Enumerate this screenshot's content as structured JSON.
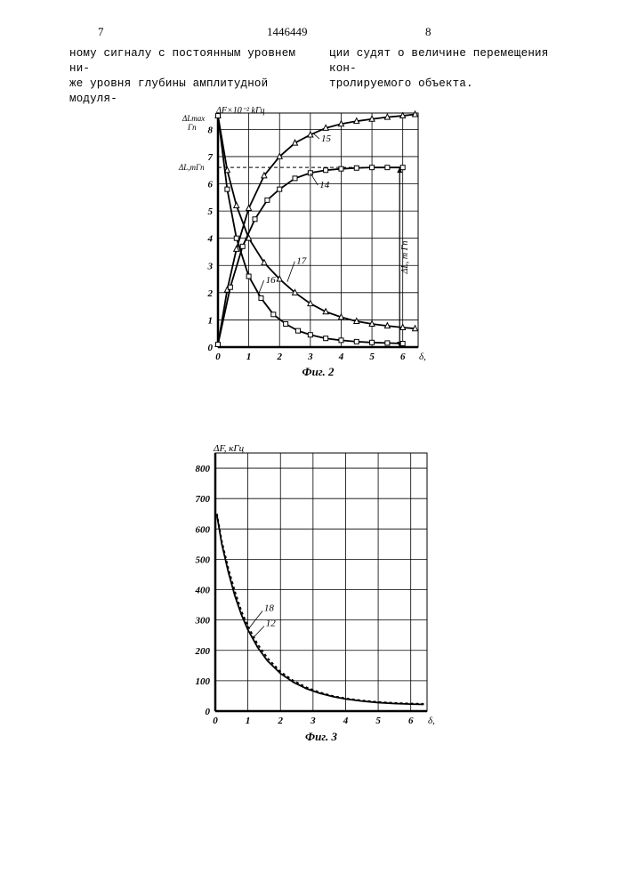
{
  "doc_number": "1446449",
  "page_left": "7",
  "page_right": "8",
  "text_left": "ному сигналу с постоянным уровнем ни-\nже уровня глубины амплитудной модуля-",
  "text_right": "ции судят о величине перемещения кон-\nтролируемого объекта.",
  "chart2": {
    "caption": "Фиг. 2",
    "y_label": "ΔF×10⁻² kГц",
    "y_label2_top": "ΔLmax\nГп",
    "y_label2_mid": "ΔL,mГп",
    "x_label": "δ, мм",
    "xlim": [
      0,
      6.5
    ],
    "x_ticks": [
      0,
      1,
      2,
      3,
      4,
      5,
      6
    ],
    "ylim_left": [
      0,
      8.6
    ],
    "y_ticks_left": [
      0,
      1,
      2,
      3,
      4,
      5,
      6,
      7,
      8
    ],
    "dashed_y": 6.6,
    "dashed_x": 5.9,
    "right_arrow_label": "ΔL, m Гп",
    "curve_15_up": {
      "label": "15",
      "marker": "triangle",
      "points": [
        [
          0,
          0.1
        ],
        [
          0.3,
          2.1
        ],
        [
          0.6,
          3.6
        ],
        [
          1,
          5.1
        ],
        [
          1.5,
          6.3
        ],
        [
          2,
          7.0
        ],
        [
          2.5,
          7.5
        ],
        [
          3,
          7.8
        ],
        [
          3.5,
          8.05
        ],
        [
          4,
          8.2
        ],
        [
          4.5,
          8.3
        ],
        [
          5,
          8.38
        ],
        [
          5.5,
          8.45
        ],
        [
          6,
          8.5
        ],
        [
          6.4,
          8.55
        ]
      ]
    },
    "curve_14": {
      "label": "14",
      "marker": "square",
      "points": [
        [
          0,
          0.1
        ],
        [
          0.4,
          2.2
        ],
        [
          0.8,
          3.7
        ],
        [
          1.2,
          4.7
        ],
        [
          1.6,
          5.4
        ],
        [
          2,
          5.8
        ],
        [
          2.5,
          6.2
        ],
        [
          3,
          6.4
        ],
        [
          3.5,
          6.5
        ],
        [
          4,
          6.55
        ],
        [
          4.5,
          6.58
        ],
        [
          5,
          6.6
        ],
        [
          5.5,
          6.6
        ],
        [
          6,
          6.6
        ]
      ]
    },
    "curve_17": {
      "label": "17",
      "marker": "triangle",
      "points": [
        [
          0,
          8.5
        ],
        [
          0.3,
          6.5
        ],
        [
          0.6,
          5.2
        ],
        [
          1,
          4.0
        ],
        [
          1.5,
          3.1
        ],
        [
          2,
          2.5
        ],
        [
          2.5,
          2.0
        ],
        [
          3,
          1.6
        ],
        [
          3.5,
          1.3
        ],
        [
          4,
          1.1
        ],
        [
          4.5,
          0.95
        ],
        [
          5,
          0.85
        ],
        [
          5.5,
          0.78
        ],
        [
          6,
          0.72
        ],
        [
          6.4,
          0.68
        ]
      ]
    },
    "curve_16": {
      "label": "16",
      "marker": "square",
      "points": [
        [
          0,
          8.5
        ],
        [
          0.3,
          5.8
        ],
        [
          0.6,
          4.0
        ],
        [
          1,
          2.6
        ],
        [
          1.4,
          1.8
        ],
        [
          1.8,
          1.2
        ],
        [
          2.2,
          0.85
        ],
        [
          2.6,
          0.6
        ],
        [
          3,
          0.45
        ],
        [
          3.5,
          0.32
        ],
        [
          4,
          0.25
        ],
        [
          4.5,
          0.2
        ],
        [
          5,
          0.17
        ],
        [
          5.5,
          0.15
        ],
        [
          6,
          0.13
        ]
      ]
    },
    "grid_color": "#000000",
    "bg": "#ffffff",
    "label_fontsize": 11
  },
  "chart3": {
    "caption": "Фиг. 3",
    "y_label": "ΔF, кГц",
    "x_label": "δ, мм",
    "xlim": [
      0,
      6.5
    ],
    "x_ticks": [
      0,
      1,
      2,
      3,
      4,
      5,
      6
    ],
    "ylim": [
      0,
      850
    ],
    "y_ticks": [
      0,
      100,
      200,
      300,
      400,
      500,
      600,
      700,
      800
    ],
    "curve_18": {
      "label": "18",
      "dash": "3,3",
      "points": [
        [
          0.05,
          650
        ],
        [
          0.2,
          560
        ],
        [
          0.4,
          470
        ],
        [
          0.6,
          395
        ],
        [
          0.8,
          330
        ],
        [
          1,
          280
        ],
        [
          1.3,
          220
        ],
        [
          1.6,
          175
        ],
        [
          2,
          130
        ],
        [
          2.4,
          100
        ],
        [
          2.8,
          78
        ],
        [
          3.2,
          62
        ],
        [
          3.6,
          50
        ],
        [
          4,
          42
        ],
        [
          4.5,
          35
        ],
        [
          5,
          30
        ],
        [
          5.5,
          27
        ],
        [
          6,
          25
        ],
        [
          6.4,
          24
        ]
      ]
    },
    "curve_12": {
      "label": "12",
      "dash": "none",
      "points": [
        [
          0.05,
          645
        ],
        [
          0.2,
          550
        ],
        [
          0.4,
          458
        ],
        [
          0.6,
          380
        ],
        [
          0.8,
          318
        ],
        [
          1,
          268
        ],
        [
          1.3,
          210
        ],
        [
          1.6,
          166
        ],
        [
          2,
          124
        ],
        [
          2.4,
          95
        ],
        [
          2.8,
          74
        ],
        [
          3.2,
          59
        ],
        [
          3.6,
          48
        ],
        [
          4,
          40
        ],
        [
          4.5,
          33
        ],
        [
          5,
          28
        ],
        [
          5.5,
          25
        ],
        [
          6,
          23
        ],
        [
          6.4,
          22
        ]
      ]
    },
    "grid_color": "#000000",
    "bg": "#ffffff",
    "label_fontsize": 11
  }
}
